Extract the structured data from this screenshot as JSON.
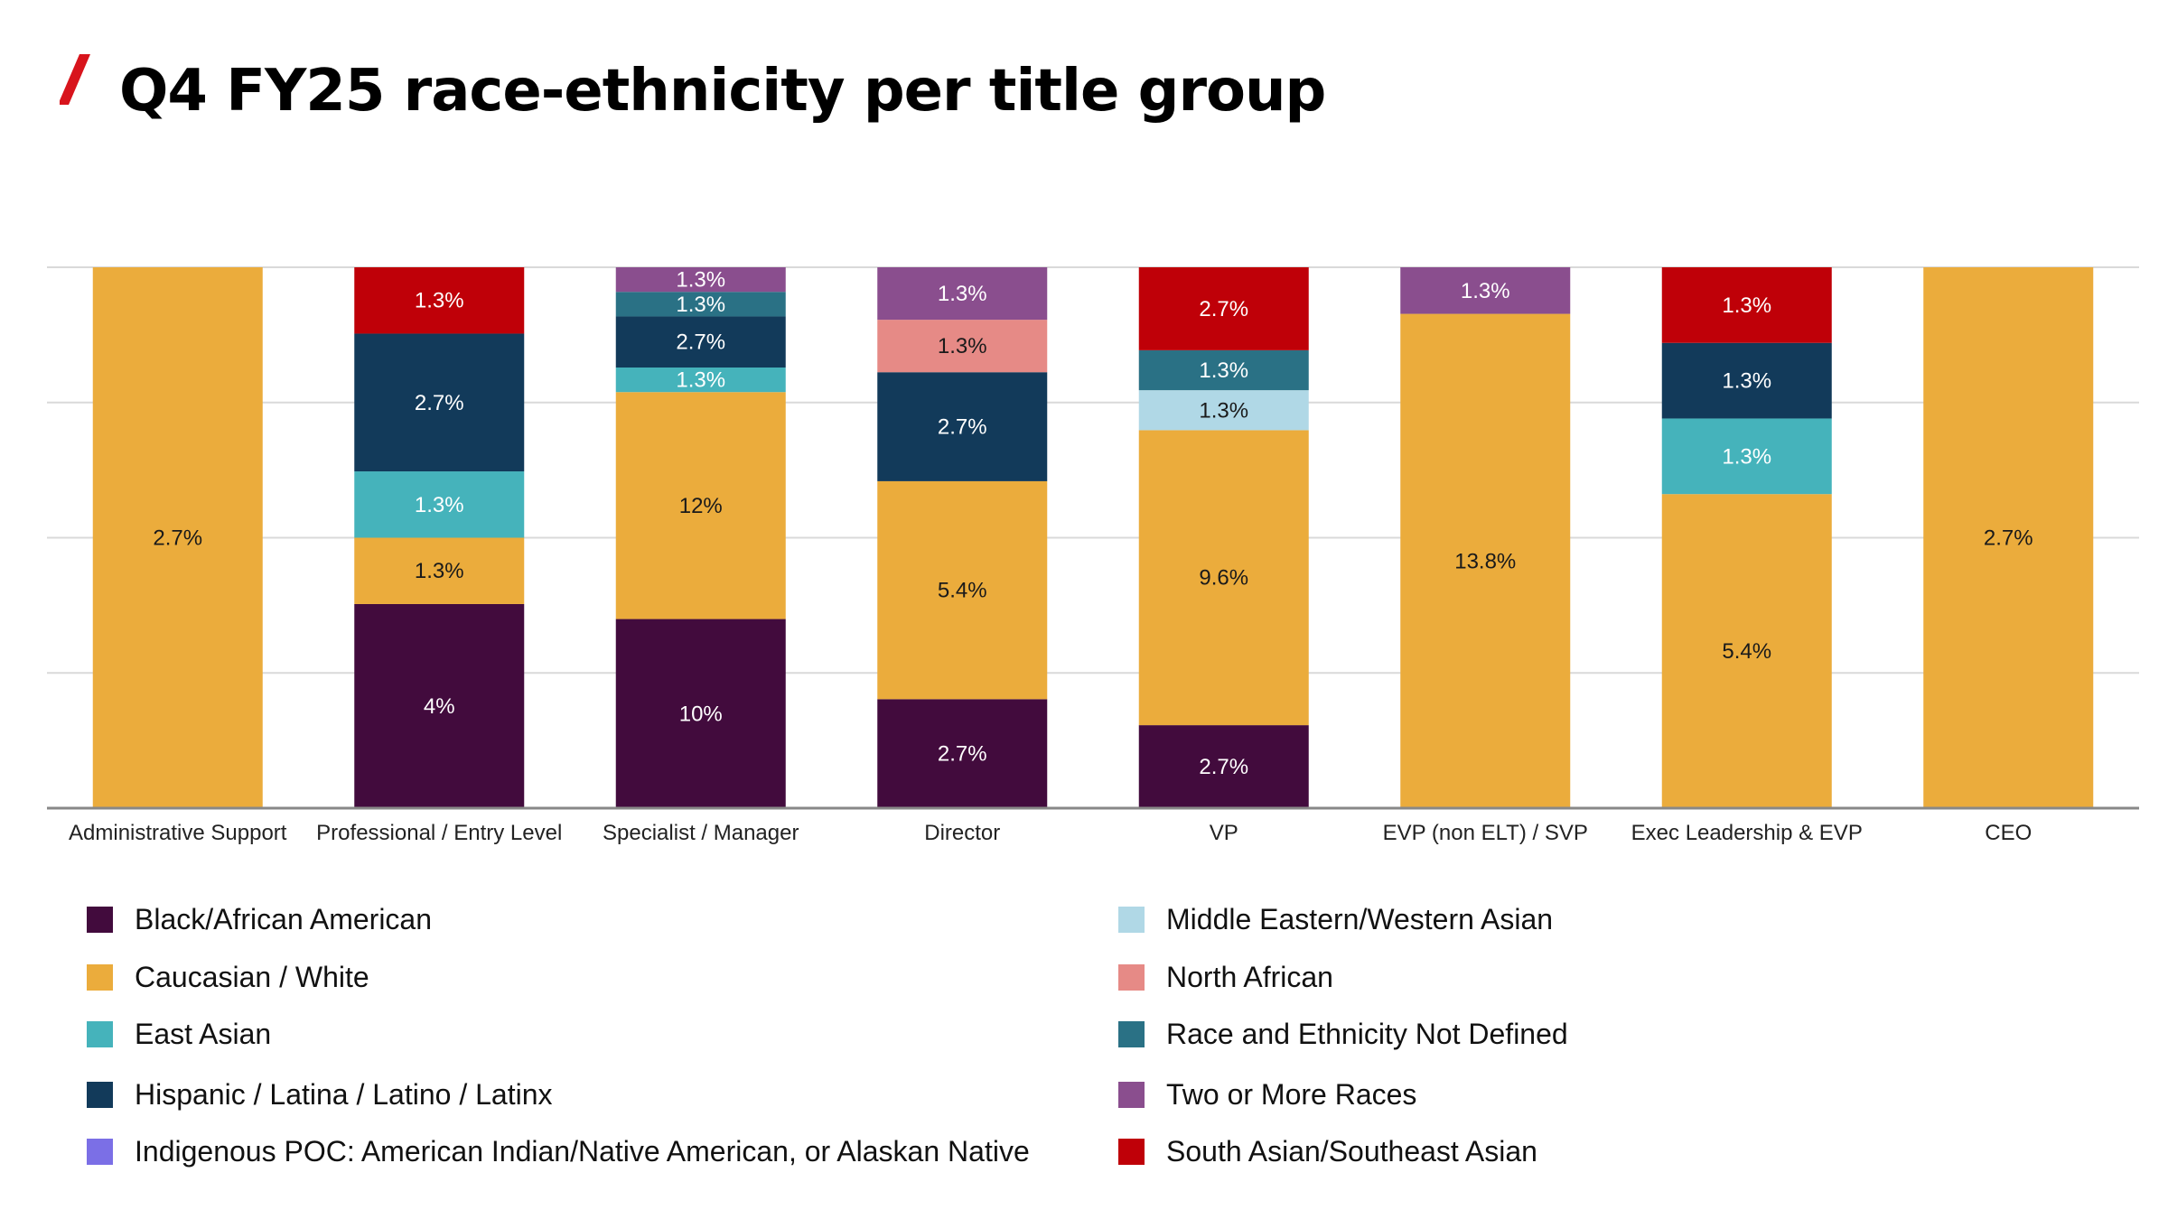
{
  "title": "Q4 FY25 race-ethnicity per title group",
  "colors": {
    "accent": "#d8141c",
    "black_african_american": "#420b3d",
    "caucasian_white": "#ebac3c",
    "east_asian": "#45b3bb",
    "hispanic_latinx": "#123a5a",
    "indigenous": "#7b6fe6",
    "middle_eastern": "#b0d8e6",
    "north_african": "#e68a86",
    "not_defined": "#2a7185",
    "two_or_more": "#8a4e8e",
    "south_asian": "#bf0008"
  },
  "legend": [
    {
      "label": "Black/African American",
      "color": "#420b3d"
    },
    {
      "label": "Caucasian / White",
      "color": "#ebac3c"
    },
    {
      "label": "East Asian",
      "color": "#45b3bb"
    },
    {
      "label": "Hispanic / Latina / Latino / Latinx",
      "color": "#123a5a"
    },
    {
      "label": "Indigenous POC: American Indian/Native American, or Alaskan Native",
      "color": "#7b6fe6"
    },
    {
      "label": "Middle Eastern/Western Asian",
      "color": "#b0d8e6"
    },
    {
      "label": "North African",
      "color": "#e68a86"
    },
    {
      "label": "Race and Ethnicity Not Defined",
      "color": "#2a7185"
    },
    {
      "label": "Two or More Races",
      "color": "#8a4e8e"
    },
    {
      "label": "South Asian/Southeast Asian",
      "color": "#bf0008"
    }
  ],
  "chart_data": {
    "type": "bar",
    "stacked": "100%",
    "grid": true,
    "legend_position": "bottom",
    "categories": [
      "Administrative Support",
      "Professional / Entry Level",
      "Specialist / Manager",
      "Director",
      "VP",
      "EVP (non ELT) / SVP",
      "Exec Leadership & EVP",
      "CEO"
    ],
    "series": [
      {
        "name": "Black/African American",
        "color": "#420b3d",
        "values": [
          0,
          4,
          10,
          2.7,
          2.7,
          0,
          0,
          0
        ],
        "labels": [
          "",
          "4%",
          "10%",
          "2.7%",
          "2.7%",
          "",
          "",
          ""
        ]
      },
      {
        "name": "Caucasian / White",
        "color": "#ebac3c",
        "values": [
          2.7,
          1.3,
          12,
          5.4,
          9.6,
          13.8,
          5.4,
          2.7
        ],
        "labels": [
          "2.7%",
          "1.3%",
          "12%",
          "5.4%",
          "9.6%",
          "13.8%",
          "5.4%",
          "2.7%"
        ]
      },
      {
        "name": "East Asian",
        "color": "#45b3bb",
        "values": [
          0,
          1.3,
          1.3,
          0,
          0,
          0,
          1.3,
          0
        ],
        "labels": [
          "",
          "1.3%",
          "1.3%",
          "",
          "",
          "",
          "1.3%",
          ""
        ]
      },
      {
        "name": "Hispanic / Latina / Latino / Latinx",
        "color": "#123a5a",
        "values": [
          0,
          2.7,
          2.7,
          2.7,
          0,
          0,
          1.3,
          0
        ],
        "labels": [
          "",
          "2.7%",
          "2.7%",
          "2.7%",
          "",
          "",
          "1.3%",
          ""
        ]
      },
      {
        "name": "Indigenous POC: American Indian/Native American, or Alaskan Native",
        "color": "#7b6fe6",
        "values": [
          0,
          0,
          0,
          0,
          0,
          0,
          0,
          0
        ],
        "labels": [
          "",
          "",
          "",
          "",
          "",
          "",
          "",
          ""
        ]
      },
      {
        "name": "Middle Eastern/Western Asian",
        "color": "#b0d8e6",
        "values": [
          0,
          0,
          0,
          0,
          1.3,
          0,
          0,
          0
        ],
        "labels": [
          "",
          "",
          "",
          "",
          "1.3%",
          "",
          "",
          ""
        ]
      },
      {
        "name": "North African",
        "color": "#e68a86",
        "values": [
          0,
          0,
          0,
          1.3,
          0,
          0,
          0,
          0
        ],
        "labels": [
          "",
          "",
          "",
          "1.3%",
          "",
          "",
          "",
          ""
        ]
      },
      {
        "name": "Race and Ethnicity Not Defined",
        "color": "#2a7185",
        "values": [
          0,
          0,
          1.3,
          0,
          1.3,
          0,
          0,
          0
        ],
        "labels": [
          "",
          "",
          "1.3%",
          "",
          "1.3%",
          "",
          "",
          ""
        ]
      },
      {
        "name": "Two or More Races",
        "color": "#8a4e8e",
        "values": [
          0,
          0,
          1.3,
          1.3,
          0,
          1.3,
          0,
          0
        ],
        "labels": [
          "",
          "",
          "1.3%",
          "1.3%",
          "",
          "1.3%",
          "",
          ""
        ]
      },
      {
        "name": "South Asian/Southeast Asian",
        "color": "#bf0008",
        "values": [
          0,
          1.3,
          0,
          0,
          2.7,
          0,
          1.3,
          0
        ],
        "labels": [
          "",
          "1.3%",
          "",
          "",
          "2.7%",
          "",
          "1.3%",
          ""
        ]
      }
    ]
  }
}
